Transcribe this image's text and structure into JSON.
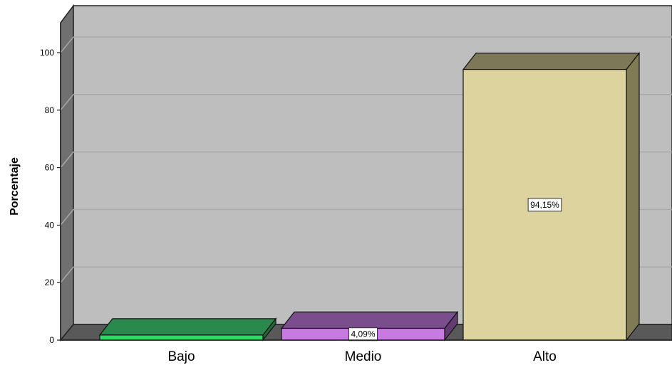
{
  "chart_data": {
    "type": "bar",
    "style": "3d",
    "title": "",
    "xlabel": "",
    "ylabel": "Porcentaje",
    "ylim": [
      0,
      100
    ],
    "yticks": [
      0,
      20,
      40,
      60,
      80,
      100
    ],
    "grid": true,
    "categories": [
      "Bajo",
      "Medio",
      "Alto"
    ],
    "values": [
      1.76,
      4.09,
      94.15
    ],
    "data_labels": [
      "",
      "4,09%",
      "94,15%"
    ],
    "colors": {
      "bars": [
        {
          "front": "#2fd967",
          "top": "#2a8a4d",
          "side": "#1f6b3a"
        },
        {
          "front": "#c77ae0",
          "top": "#7a4d8c",
          "side": "#623b70"
        },
        {
          "front": "#dcd39f",
          "top": "#7d7857",
          "side": "#807a55"
        }
      ],
      "wall": "#bebebe",
      "floor": "#595959",
      "side_wall": "#707070",
      "gridline": "#a8a8a8"
    }
  }
}
